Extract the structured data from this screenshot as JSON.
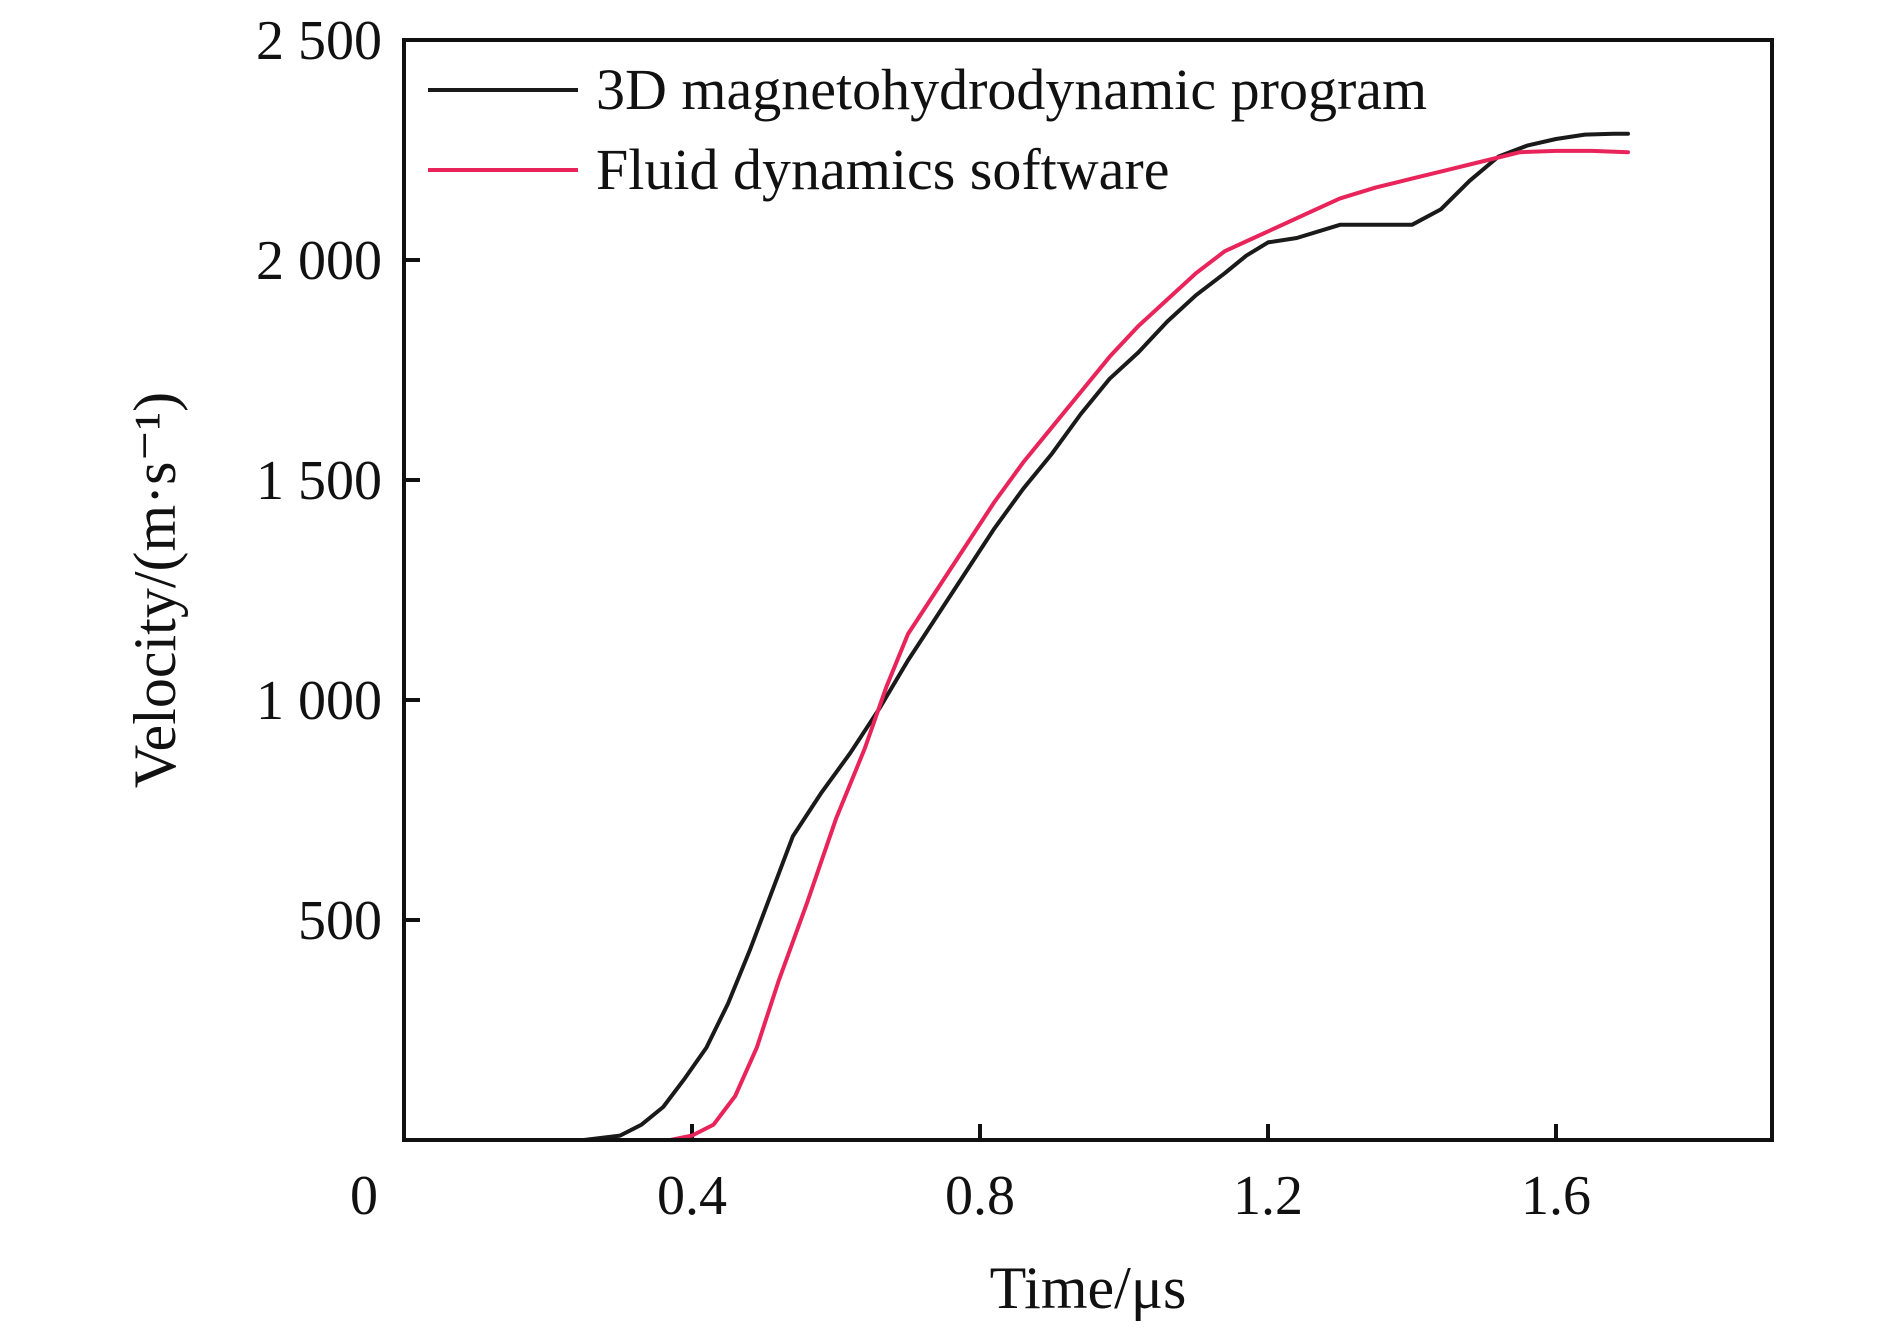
{
  "chart_data": {
    "type": "line",
    "xlabel": "Time/μs",
    "ylabel": "Velocity/(m·s⁻¹)",
    "xlim": [
      0.0,
      1.9
    ],
    "ylim": [
      0,
      2500
    ],
    "x_ticks": [
      0.4,
      0.8,
      1.2,
      1.6
    ],
    "x_tick_labels": [
      "0.4",
      "0.8",
      "1.2",
      "1.6"
    ],
    "origin_label": "0",
    "y_ticks": [
      500,
      1000,
      1500,
      2000,
      2500
    ],
    "y_tick_labels": [
      "500",
      "1 000",
      "1 500",
      "2 000",
      "2 500"
    ],
    "grid": false,
    "legend_position": "top-left",
    "series": [
      {
        "name": "3D magnetohydrodynamic program",
        "color": "#1a1a1a",
        "points": [
          [
            0.14,
            0
          ],
          [
            0.25,
            0
          ],
          [
            0.3,
            10
          ],
          [
            0.33,
            35
          ],
          [
            0.36,
            75
          ],
          [
            0.39,
            140
          ],
          [
            0.42,
            210
          ],
          [
            0.45,
            310
          ],
          [
            0.48,
            430
          ],
          [
            0.51,
            560
          ],
          [
            0.54,
            690
          ],
          [
            0.58,
            790
          ],
          [
            0.62,
            880
          ],
          [
            0.66,
            980
          ],
          [
            0.7,
            1090
          ],
          [
            0.74,
            1190
          ],
          [
            0.78,
            1290
          ],
          [
            0.82,
            1390
          ],
          [
            0.86,
            1480
          ],
          [
            0.9,
            1560
          ],
          [
            0.94,
            1650
          ],
          [
            0.98,
            1730
          ],
          [
            1.02,
            1790
          ],
          [
            1.06,
            1860
          ],
          [
            1.1,
            1920
          ],
          [
            1.14,
            1970
          ],
          [
            1.17,
            2010
          ],
          [
            1.2,
            2040
          ],
          [
            1.24,
            2050
          ],
          [
            1.3,
            2080
          ],
          [
            1.36,
            2080
          ],
          [
            1.4,
            2080
          ],
          [
            1.44,
            2115
          ],
          [
            1.48,
            2180
          ],
          [
            1.52,
            2235
          ],
          [
            1.56,
            2260
          ],
          [
            1.6,
            2275
          ],
          [
            1.64,
            2285
          ],
          [
            1.68,
            2287
          ],
          [
            1.7,
            2287
          ]
        ]
      },
      {
        "name": "Fluid dynamics software",
        "color": "#e8245a",
        "points": [
          [
            0.37,
            0
          ],
          [
            0.4,
            10
          ],
          [
            0.43,
            35
          ],
          [
            0.46,
            100
          ],
          [
            0.49,
            210
          ],
          [
            0.52,
            360
          ],
          [
            0.56,
            540
          ],
          [
            0.6,
            730
          ],
          [
            0.64,
            890
          ],
          [
            0.67,
            1030
          ],
          [
            0.7,
            1150
          ],
          [
            0.74,
            1250
          ],
          [
            0.78,
            1350
          ],
          [
            0.82,
            1450
          ],
          [
            0.86,
            1540
          ],
          [
            0.9,
            1620
          ],
          [
            0.94,
            1700
          ],
          [
            0.98,
            1780
          ],
          [
            1.02,
            1850
          ],
          [
            1.06,
            1910
          ],
          [
            1.1,
            1970
          ],
          [
            1.14,
            2020
          ],
          [
            1.18,
            2050
          ],
          [
            1.22,
            2080
          ],
          [
            1.26,
            2110
          ],
          [
            1.3,
            2140
          ],
          [
            1.35,
            2165
          ],
          [
            1.4,
            2185
          ],
          [
            1.45,
            2205
          ],
          [
            1.5,
            2225
          ],
          [
            1.55,
            2245
          ],
          [
            1.6,
            2248
          ],
          [
            1.65,
            2248
          ],
          [
            1.7,
            2245
          ]
        ]
      }
    ]
  }
}
